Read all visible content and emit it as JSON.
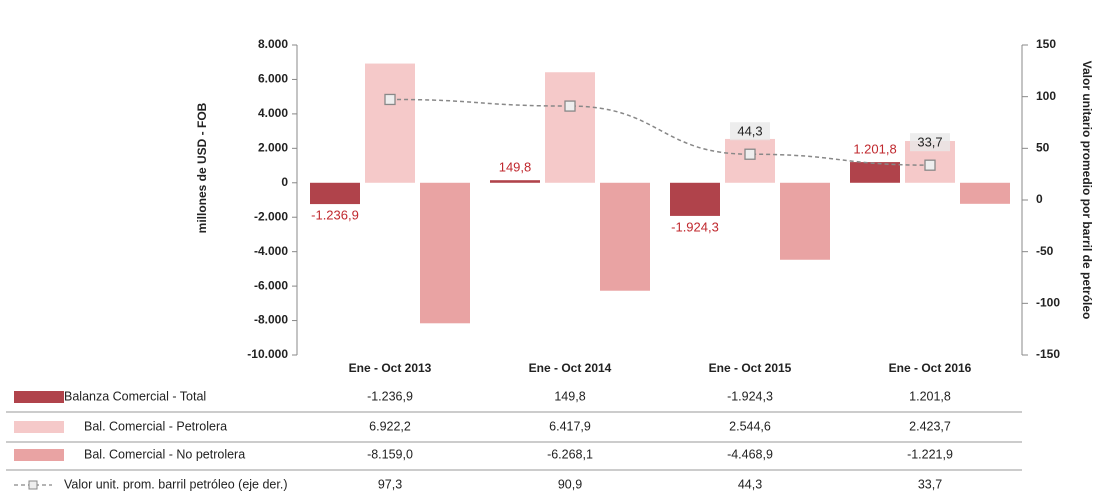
{
  "chart_data": {
    "type": "bar",
    "categories": [
      "Ene - Oct  2013",
      "Ene - Oct  2014",
      "Ene - Oct  2015",
      "Ene - Oct  2016"
    ],
    "ylabel": "millones de USD - FOB",
    "y2label": "Valor unitario promedio por barril de petróleo",
    "ylim": [
      -10000,
      8000
    ],
    "yticks": [
      {
        "value": 8000,
        "label": "8.000"
      },
      {
        "value": 6000,
        "label": "6.000"
      },
      {
        "value": 4000,
        "label": "4.000"
      },
      {
        "value": 2000,
        "label": "2.000"
      },
      0,
      {
        "value": -2000,
        "label": "-2.000"
      },
      {
        "value": -4000,
        "label": "-4.000"
      },
      {
        "value": -6000,
        "label": "-6.000"
      },
      {
        "value": -8000,
        "label": "-8.000"
      },
      {
        "value": -10000,
        "label": "-10.000"
      }
    ],
    "y2lim": [
      -150,
      150
    ],
    "y2ticks": [
      150,
      100,
      50,
      0,
      -50,
      -100,
      -150
    ],
    "series": [
      {
        "name": "Balanza Comercial - Total",
        "color": "#b0434b",
        "values": [
          -1236.9,
          149.8,
          -1924.3,
          1201.8
        ],
        "value_labels": [
          "-1.236,9",
          "149,8",
          "-1.924,3",
          "1.201,8"
        ]
      },
      {
        "name": "Bal. Comercial - Petrolera",
        "color": "#f5c9c9",
        "values": [
          6922.2,
          6417.9,
          2544.6,
          2423.7
        ],
        "value_labels": [
          "6.922,2",
          "6.417,9",
          "2.544,6",
          "2.423,7"
        ]
      },
      {
        "name": "Bal. Comercial - No petrolera",
        "color": "#e9a3a3",
        "values": [
          -8159.0,
          -6268.1,
          -4468.9,
          -1221.9
        ],
        "value_labels": [
          "-8.159,0",
          "-6.268,1",
          "-4.468,9",
          "-1.221,9"
        ]
      },
      {
        "name": "Valor unit. prom. barril petróleo (eje der.)",
        "color": "#888888",
        "axis": "y2",
        "type": "line",
        "values": [
          97.3,
          90.9,
          44.3,
          33.7
        ],
        "value_labels": [
          "97,3",
          "90,9",
          "44,3",
          "33,7"
        ]
      }
    ]
  }
}
